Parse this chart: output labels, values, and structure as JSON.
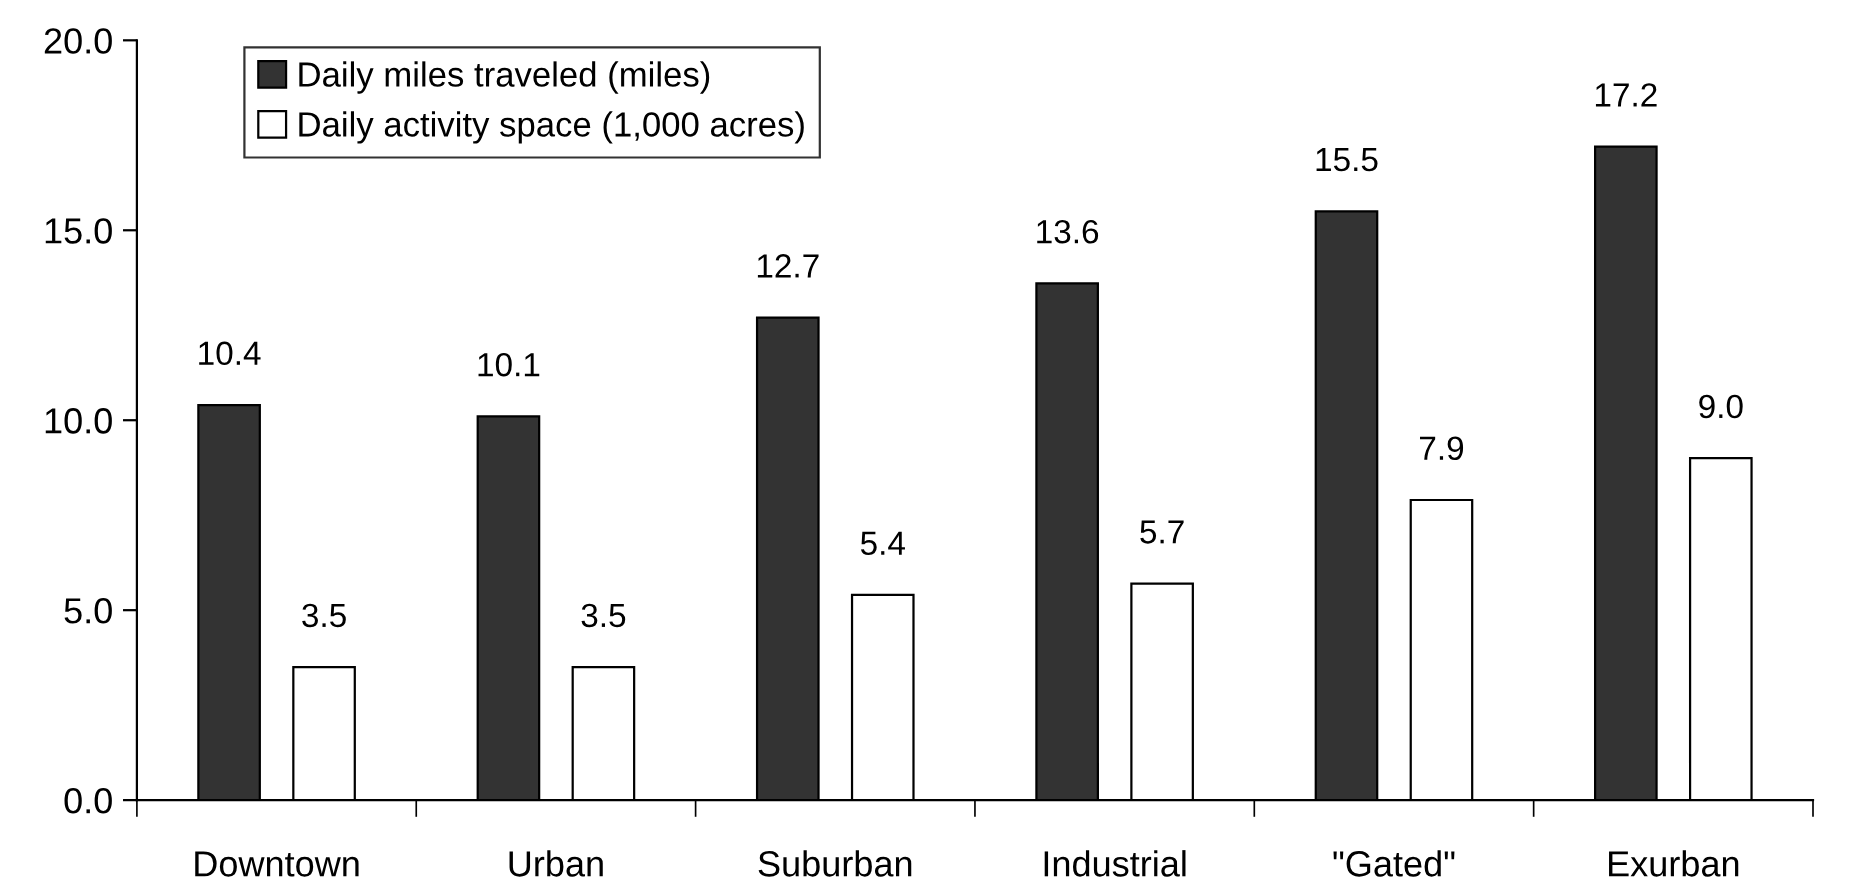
{
  "chart_data": {
    "type": "bar",
    "categories": [
      "Downtown",
      "Urban",
      "Suburban",
      "Industrial",
      "\"Gated\"",
      "Exurban"
    ],
    "series": [
      {
        "name": "Daily miles traveled (miles)",
        "color": "#333333",
        "values": [
          10.4,
          10.1,
          12.7,
          13.6,
          15.5,
          17.2
        ],
        "value_labels": [
          "10.4",
          "10.1",
          "12.7",
          "13.6",
          "15.5",
          "17.2"
        ]
      },
      {
        "name": "Daily activity space (1,000 acres)",
        "color": "#ffffff",
        "values": [
          3.5,
          3.5,
          5.4,
          5.7,
          7.9,
          9.0
        ],
        "value_labels": [
          "3.5",
          "3.5",
          "5.4",
          "5.7",
          "7.9",
          "9.0"
        ]
      }
    ],
    "ylim": [
      0,
      20
    ],
    "yticks": [
      {
        "value": 0,
        "label": "0.0"
      },
      {
        "value": 5,
        "label": "5.0"
      },
      {
        "value": 10,
        "label": "10.0"
      },
      {
        "value": 15,
        "label": "15.0"
      },
      {
        "value": 20,
        "label": "20.0"
      }
    ],
    "grid": false,
    "legend": "top left"
  }
}
